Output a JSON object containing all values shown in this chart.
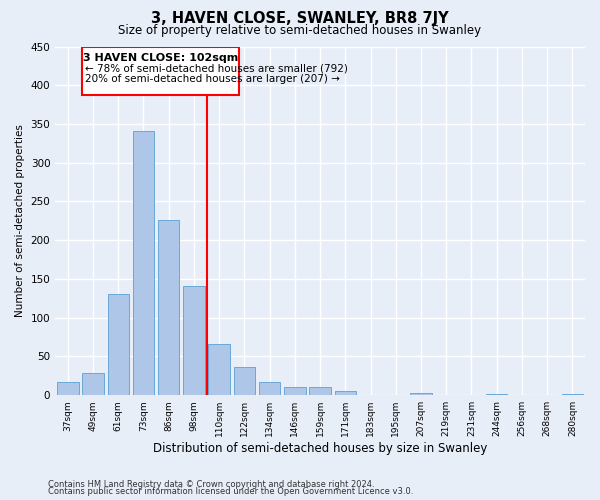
{
  "title": "3, HAVEN CLOSE, SWANLEY, BR8 7JY",
  "subtitle": "Size of property relative to semi-detached houses in Swanley",
  "xlabel": "Distribution of semi-detached houses by size in Swanley",
  "ylabel": "Number of semi-detached properties",
  "bin_labels": [
    "37sqm",
    "49sqm",
    "61sqm",
    "73sqm",
    "86sqm",
    "98sqm",
    "110sqm",
    "122sqm",
    "134sqm",
    "146sqm",
    "159sqm",
    "171sqm",
    "183sqm",
    "195sqm",
    "207sqm",
    "219sqm",
    "231sqm",
    "244sqm",
    "256sqm",
    "268sqm",
    "280sqm"
  ],
  "bar_values": [
    17,
    29,
    130,
    341,
    226,
    141,
    66,
    36,
    17,
    10,
    10,
    5,
    0,
    0,
    3,
    0,
    0,
    2,
    0,
    0,
    2
  ],
  "bar_color": "#aec6e8",
  "bar_edge_color": "#5a9fd4",
  "ylim": [
    0,
    450
  ],
  "yticks": [
    0,
    50,
    100,
    150,
    200,
    250,
    300,
    350,
    400,
    450
  ],
  "property_line_x": 5.5,
  "property_line_label": "3 HAVEN CLOSE: 102sqm",
  "annotation_line1": "← 78% of semi-detached houses are smaller (792)",
  "annotation_line2": "20% of semi-detached houses are larger (207) →",
  "vline_color": "red",
  "box_color": "red",
  "footer_line1": "Contains HM Land Registry data © Crown copyright and database right 2024.",
  "footer_line2": "Contains public sector information licensed under the Open Government Licence v3.0.",
  "background_color": "#e8eef8",
  "grid_color": "#ffffff"
}
